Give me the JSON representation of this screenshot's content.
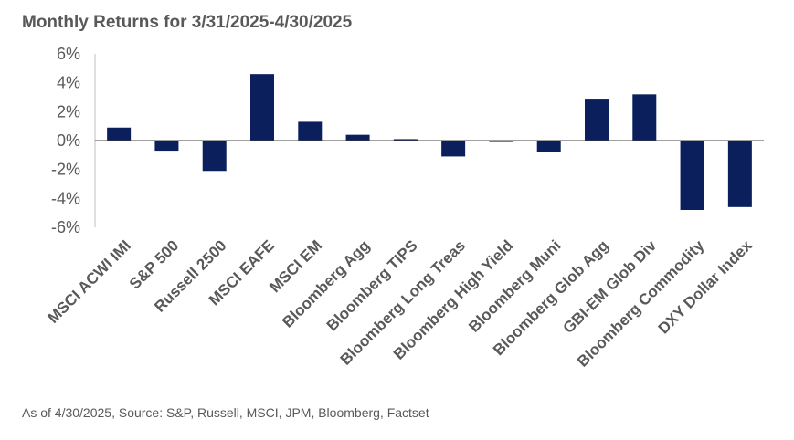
{
  "chart_data": {
    "type": "bar",
    "title": "Monthly Returns for 3/31/2025-4/30/2025",
    "xlabel": "",
    "ylabel": "",
    "ylim": [
      -6,
      6
    ],
    "yticks": [
      6,
      4,
      2,
      0,
      -2,
      -4,
      -6
    ],
    "ytick_labels": [
      "6%",
      "4%",
      "2%",
      "0%",
      "-2%",
      "-4%",
      "-6%"
    ],
    "grid": false,
    "bar_color": "#0b1f5c",
    "categories": [
      "MSCI ACWI IMI",
      "S&P 500",
      "Russell 2500",
      "MSCI EAFE",
      "MSCI EM",
      "Bloomberg Agg",
      "Bloomberg TIPS",
      "Bloomberg Long Treas",
      "Bloomberg High Yield",
      "Bloomberg Muni",
      "Bloomberg Glob Agg",
      "GBI-EM Glob Div",
      "Bloomberg Commodity",
      "DXY Dollar Index"
    ],
    "values": [
      0.9,
      -0.7,
      -2.1,
      4.6,
      1.3,
      0.4,
      0.1,
      -1.1,
      -0.1,
      -0.8,
      2.9,
      3.2,
      -4.8,
      -4.6
    ]
  },
  "footnote": "As of 4/30/2025, Source: S&P, Russell, MSCI, JPM, Bloomberg, Factset"
}
